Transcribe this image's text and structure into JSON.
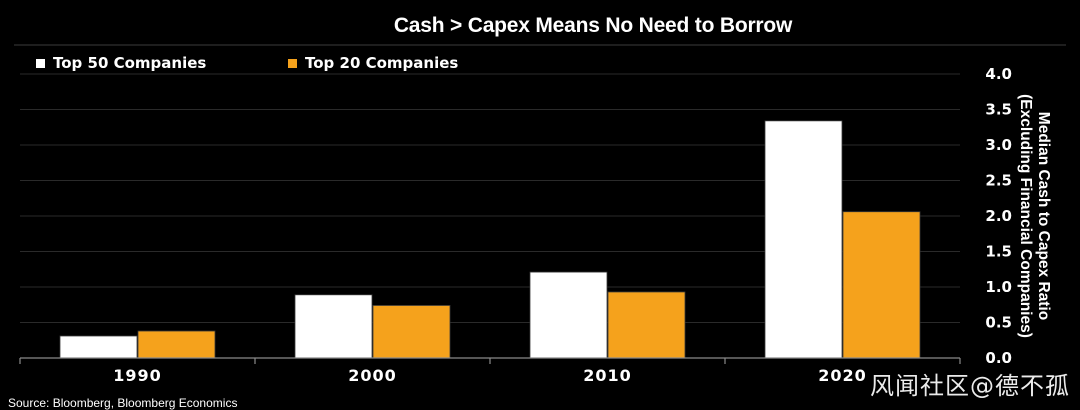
{
  "chart_data": {
    "type": "bar",
    "title": "Cash > Capex Means No Need to Borrow",
    "categories": [
      "1990",
      "2000",
      "2010",
      "2020"
    ],
    "series": [
      {
        "name": "Top 50 Companies",
        "color": "#ffffff",
        "values": [
          0.31,
          0.89,
          1.21,
          3.34
        ]
      },
      {
        "name": "Top 20 Companies",
        "color": "#f5a21c",
        "values": [
          0.38,
          0.74,
          0.93,
          2.06
        ]
      }
    ],
    "ylabel_lines": [
      "Median Cash to Capex Ratio",
      "(Excluding Financial Companies)"
    ],
    "xlabel": "",
    "ylim": [
      0,
      4.0
    ],
    "yticks": [
      "0.0",
      "0.5",
      "1.0",
      "1.5",
      "2.0",
      "2.5",
      "3.0",
      "3.5",
      "4.0"
    ],
    "grid": true,
    "legend_position": "top-left",
    "y_axis_side": "right"
  },
  "source": "Source: Bloomberg, Bloomberg Economics",
  "watermark": "风闻社区@德不孤"
}
